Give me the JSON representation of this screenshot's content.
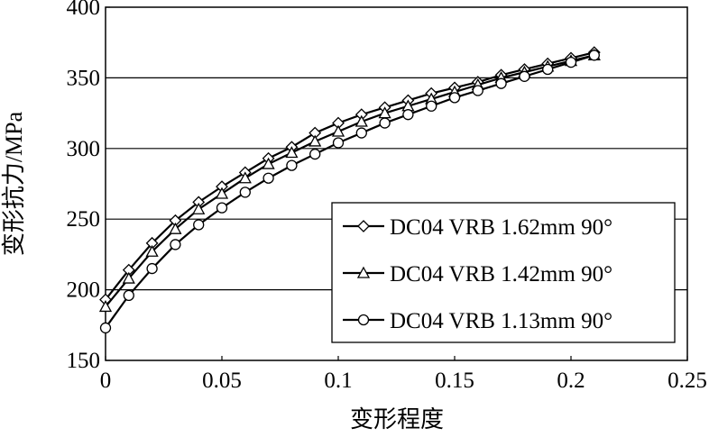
{
  "chart_data": {
    "type": "line",
    "x_label": "变形程度",
    "y_label": "变形抗力/MPa",
    "x": [
      0,
      0.01,
      0.02,
      0.03,
      0.04,
      0.05,
      0.06,
      0.07,
      0.08,
      0.09,
      0.1,
      0.11,
      0.12,
      0.13,
      0.14,
      0.15,
      0.16,
      0.17,
      0.18,
      0.19,
      0.2,
      0.21
    ],
    "series": [
      {
        "name": "DC04 VRB 1.62mm 90°",
        "color": "#000000",
        "marker": "diamond",
        "values": [
          193,
          214,
          233,
          249,
          262,
          273,
          283,
          293,
          301,
          311,
          318,
          324,
          329,
          334,
          339,
          343,
          347,
          352,
          356,
          360,
          364,
          368
        ]
      },
      {
        "name": "DC04 VRB 1.42mm 90°",
        "color": "#000000",
        "marker": "triangle",
        "values": [
          188,
          208,
          227,
          243,
          257,
          268,
          279,
          289,
          297,
          305,
          312,
          319,
          325,
          330,
          335,
          340,
          345,
          350,
          354,
          358,
          362,
          366
        ]
      },
      {
        "name": "DC04 VRB 1.13mm 90°",
        "color": "#000000",
        "marker": "circle",
        "values": [
          173,
          196,
          215,
          232,
          246,
          258,
          269,
          279,
          288,
          296,
          304,
          311,
          318,
          324,
          330,
          336,
          341,
          346,
          351,
          356,
          361,
          366
        ]
      }
    ],
    "xlim": [
      0,
      0.25
    ],
    "ylim": [
      150,
      400
    ],
    "xticks": [
      0,
      0.05,
      0.1,
      0.15,
      0.2,
      0.25
    ],
    "yticks": [
      150,
      200,
      250,
      300,
      350,
      400
    ],
    "grid": true,
    "legend": "lower right"
  }
}
